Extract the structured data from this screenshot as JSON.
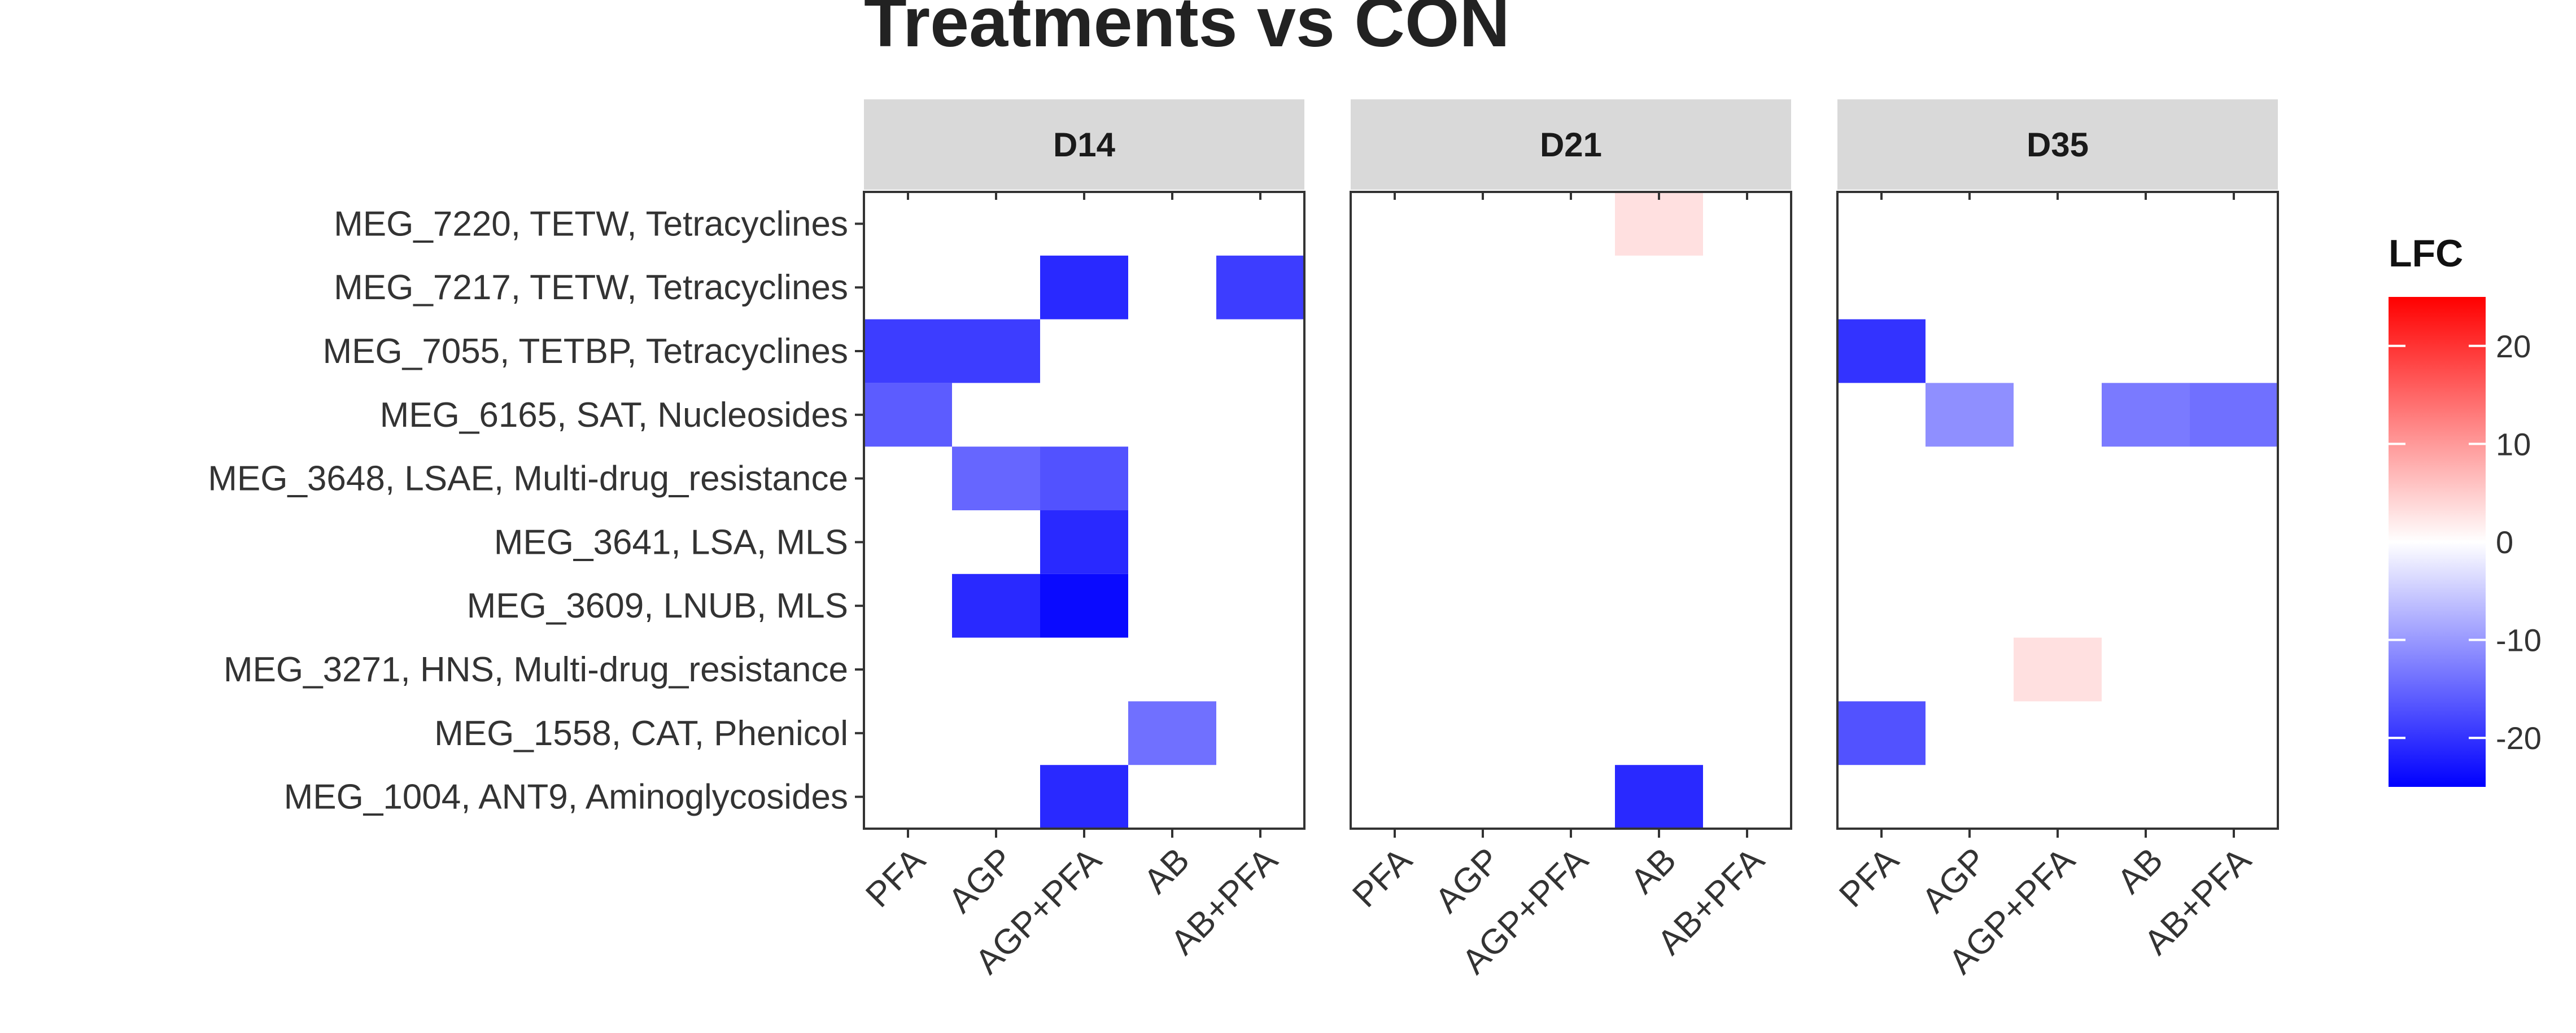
{
  "chart_data": {
    "type": "heatmap",
    "title": "Treatments vs CON",
    "facets": [
      "D14",
      "D21",
      "D35"
    ],
    "x_categories": [
      "PFA",
      "AGP",
      "AGP+PFA",
      "AB",
      "AB+PFA"
    ],
    "y_categories": [
      "MEG_7220, TETW, Tetracyclines",
      "MEG_7217, TETW, Tetracyclines",
      "MEG_7055, TETBP, Tetracyclines",
      "MEG_6165, SAT, Nucleosides",
      "MEG_3648, LSAE, Multi-drug_resistance",
      "MEG_3641, LSA, MLS",
      "MEG_3609, LNUB, MLS",
      "MEG_3271, HNS, Multi-drug_resistance",
      "MEG_1558, CAT, Phenicol",
      "MEG_1004, ANT9, Aminoglycosides"
    ],
    "cells": [
      {
        "facet": "D14",
        "x": "AGP+PFA",
        "y": "MEG_7217, TETW, Tetracyclines",
        "value": -21
      },
      {
        "facet": "D14",
        "x": "AB+PFA",
        "y": "MEG_7217, TETW, Tetracyclines",
        "value": -19
      },
      {
        "facet": "D14",
        "x": "PFA",
        "y": "MEG_7055, TETBP, Tetracyclines",
        "value": -19
      },
      {
        "facet": "D14",
        "x": "AGP",
        "y": "MEG_7055, TETBP, Tetracyclines",
        "value": -19
      },
      {
        "facet": "D14",
        "x": "PFA",
        "y": "MEG_6165, SAT, Nucleosides",
        "value": -16
      },
      {
        "facet": "D14",
        "x": "AGP",
        "y": "MEG_3648, LSAE, Multi-drug_resistance",
        "value": -15
      },
      {
        "facet": "D14",
        "x": "AGP+PFA",
        "y": "MEG_3648, LSAE, Multi-drug_resistance",
        "value": -17
      },
      {
        "facet": "D14",
        "x": "AGP+PFA",
        "y": "MEG_3641, LSA, MLS",
        "value": -21
      },
      {
        "facet": "D14",
        "x": "AGP",
        "y": "MEG_3609, LNUB, MLS",
        "value": -21
      },
      {
        "facet": "D14",
        "x": "AGP+PFA",
        "y": "MEG_3609, LNUB, MLS",
        "value": -24
      },
      {
        "facet": "D14",
        "x": "AB",
        "y": "MEG_1558, CAT, Phenicol",
        "value": -14
      },
      {
        "facet": "D14",
        "x": "AGP+PFA",
        "y": "MEG_1004, ANT9, Aminoglycosides",
        "value": -21
      },
      {
        "facet": "D21",
        "x": "AB",
        "y": "MEG_7220, TETW, Tetracyclines",
        "value": 3
      },
      {
        "facet": "D21",
        "x": "AB",
        "y": "MEG_1004, ANT9, Aminoglycosides",
        "value": -21
      },
      {
        "facet": "D35",
        "x": "PFA",
        "y": "MEG_7055, TETBP, Tetracyclines",
        "value": -20
      },
      {
        "facet": "D35",
        "x": "AGP",
        "y": "MEG_6165, SAT, Nucleosides",
        "value": -11
      },
      {
        "facet": "D35",
        "x": "AB",
        "y": "MEG_6165, SAT, Nucleosides",
        "value": -13
      },
      {
        "facet": "D35",
        "x": "AB+PFA",
        "y": "MEG_6165, SAT, Nucleosides",
        "value": -14
      },
      {
        "facet": "D35",
        "x": "AGP+PFA",
        "y": "MEG_3271, HNS, Multi-drug_resistance",
        "value": 3
      },
      {
        "facet": "D35",
        "x": "PFA",
        "y": "MEG_1558, CAT, Phenicol",
        "value": -17
      }
    ],
    "legend": {
      "title": "LFC",
      "range": [
        -25,
        25
      ],
      "ticks": [
        20,
        10,
        0,
        -10,
        -20
      ],
      "tick_labels": [
        "20",
        "10",
        "0",
        "-10",
        "-20"
      ],
      "colors": {
        "low": "#0000ff",
        "mid": "#ffffff",
        "high": "#ff0000"
      }
    },
    "style": {
      "strip_fill": "#d9d9d9",
      "panel_border": "#333333",
      "text_color": "#333333"
    }
  }
}
